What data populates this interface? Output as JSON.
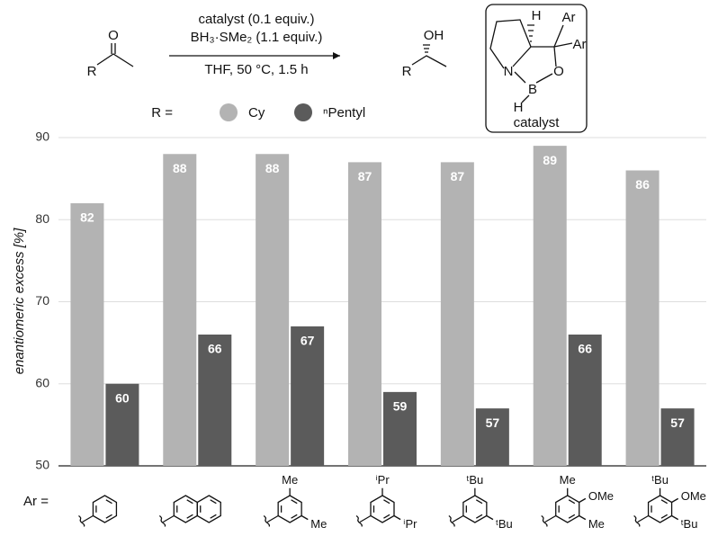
{
  "scheme": {
    "conditions_above": [
      "catalyst (0.1 equiv.)",
      "BH₃·SMe₂ (1.1 equiv.)"
    ],
    "conditions_below": "THF, 50 °C, 1.5 h",
    "substrate_atoms": [
      "O",
      "R"
    ],
    "product_atoms": [
      "OH",
      "R"
    ],
    "catalyst_atoms": [
      "H",
      "Ar",
      "Ar",
      "N",
      "O",
      "B",
      "H"
    ],
    "catalyst_label": "catalyst"
  },
  "chart_data": {
    "type": "bar",
    "ylabel": "enantiomeric excess [%]",
    "legend_title": "R =",
    "categories": [
      null,
      null,
      null,
      null,
      null,
      null,
      null
    ],
    "category_axis_title": "Ar =",
    "ar_substituents": [
      [],
      [],
      [
        "Me",
        "Me"
      ],
      [
        "ⁱPr",
        "ⁱPr"
      ],
      [
        "ᵗBu",
        "ᵗBu"
      ],
      [
        "Me",
        "OMe",
        "Me"
      ],
      [
        "ᵗBu",
        "OMe",
        "ᵗBu"
      ]
    ],
    "series": [
      {
        "name": "Cy",
        "color": "#b3b3b3",
        "values": [
          82,
          88,
          88,
          87,
          87,
          89,
          86
        ]
      },
      {
        "name": "ⁿPentyl",
        "color": "#5b5b5b",
        "values": [
          60,
          66,
          67,
          59,
          57,
          66,
          57
        ]
      }
    ],
    "ylim": [
      50,
      90
    ],
    "yticks": [
      50,
      60,
      70,
      80,
      90
    ],
    "grid": true
  }
}
